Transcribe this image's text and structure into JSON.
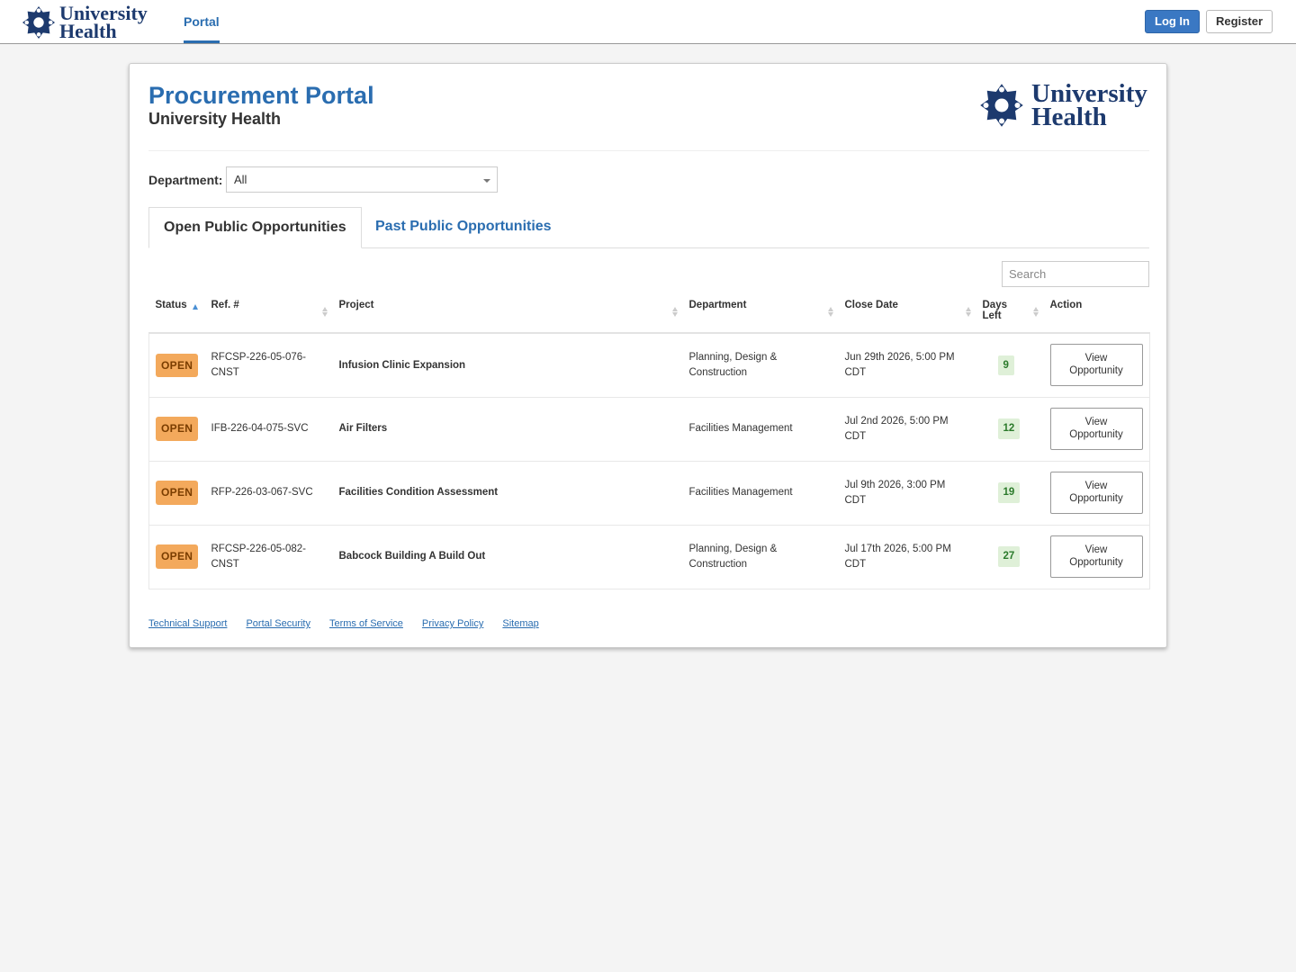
{
  "nav": {
    "logo_line1": "University",
    "logo_line2": "Health",
    "portal": "Portal",
    "login": "Log In",
    "register": "Register"
  },
  "header": {
    "title": "Procurement Portal",
    "subtitle": "University Health",
    "logo_line1": "University",
    "logo_line2": "Health"
  },
  "filter": {
    "label": "Department:",
    "value": "All"
  },
  "tabs": [
    "Open Public Opportunities",
    "Past Public Opportunities"
  ],
  "search_placeholder": "Search",
  "table": {
    "columns": [
      "Status",
      "Ref. #",
      "Project",
      "Department",
      "Close Date",
      "Days Left",
      "Action"
    ],
    "rows": [
      [
        "OPEN",
        "RFCSP-226-05-076-CNST",
        "Infusion Clinic Expansion",
        "Planning, Design & Construction",
        "Jun 29th 2026, 5:00 PM CDT",
        9,
        "View Opportunity"
      ],
      [
        "OPEN",
        "IFB-226-04-075-SVC",
        "Air Filters",
        "Facilities Management",
        "Jul 2nd 2026, 5:00 PM CDT",
        12,
        "View Opportunity"
      ],
      [
        "OPEN",
        "RFP-226-03-067-SVC",
        "Facilities Condition Assessment",
        "Facilities Management",
        "Jul 9th 2026, 3:00 PM CDT",
        19,
        "View Opportunity"
      ],
      [
        "OPEN",
        "RFCSP-226-05-082-CNST",
        "Babcock Building A Build Out",
        "Planning, Design & Construction",
        "Jul 17th 2026, 5:00 PM CDT",
        27,
        "View Opportunity"
      ]
    ]
  },
  "footer": [
    "Technical Support",
    "Portal Security",
    "Terms of Service",
    "Privacy Policy",
    "Sitemap"
  ]
}
